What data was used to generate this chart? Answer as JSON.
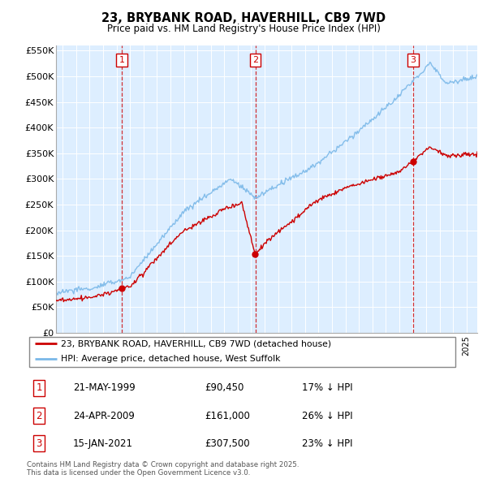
{
  "title": "23, BRYBANK ROAD, HAVERHILL, CB9 7WD",
  "subtitle": "Price paid vs. HM Land Registry's House Price Index (HPI)",
  "ylim": [
    0,
    560000
  ],
  "yticks": [
    0,
    50000,
    100000,
    150000,
    200000,
    250000,
    300000,
    350000,
    400000,
    450000,
    500000,
    550000
  ],
  "ytick_labels": [
    "£0",
    "£50K",
    "£100K",
    "£150K",
    "£200K",
    "£250K",
    "£300K",
    "£350K",
    "£400K",
    "£450K",
    "£500K",
    "£550K"
  ],
  "hpi_color": "#7ab8e8",
  "price_color": "#cc0000",
  "vline_color": "#cc0000",
  "chart_bg_color": "#ddeeff",
  "background_color": "#ffffff",
  "grid_color": "#aaccee",
  "legend_label_price": "23, BRYBANK ROAD, HAVERHILL, CB9 7WD (detached house)",
  "legend_label_hpi": "HPI: Average price, detached house, West Suffolk",
  "transactions": [
    {
      "num": 1,
      "date": "21-MAY-1999",
      "price": 90450,
      "pct": "17% ↓ HPI",
      "year": 1999.38
    },
    {
      "num": 2,
      "date": "24-APR-2009",
      "price": 161000,
      "pct": "26% ↓ HPI",
      "year": 2009.31
    },
    {
      "num": 3,
      "date": "15-JAN-2021",
      "price": 307500,
      "pct": "23% ↓ HPI",
      "year": 2021.04
    }
  ],
  "footnote": "Contains HM Land Registry data © Crown copyright and database right 2025.\nThis data is licensed under the Open Government Licence v3.0.",
  "table_rows": [
    [
      "1",
      "21-MAY-1999",
      "£90,450",
      "17% ↓ HPI"
    ],
    [
      "2",
      "24-APR-2009",
      "£161,000",
      "26% ↓ HPI"
    ],
    [
      "3",
      "15-JAN-2021",
      "£307,500",
      "23% ↓ HPI"
    ]
  ],
  "xlim": [
    1994.5,
    2025.8
  ],
  "x_start": 1995,
  "x_end": 2025
}
